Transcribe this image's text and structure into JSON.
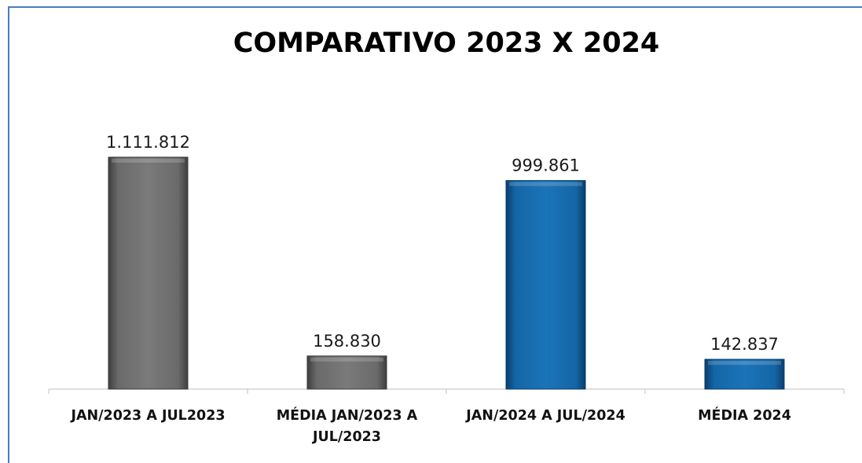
{
  "chart_data": {
    "type": "bar",
    "title": "COMPARATIVO  2023 X 2024",
    "xlabel": "",
    "ylabel": "",
    "grid": false,
    "legend": "none",
    "ylim": [
      0,
      1300000
    ],
    "categories": [
      [
        "JAN/2023 A JUL2023"
      ],
      [
        "MÉDIA JAN/2023 A",
        "JUL/2023"
      ],
      [
        "JAN/2024 A JUL/2024"
      ],
      [
        "MÉDIA 2024"
      ]
    ],
    "values": [
      1111812,
      158830,
      999861,
      142837
    ],
    "data_labels": [
      "1.111.812",
      "158.830",
      "999.861",
      "142.837"
    ],
    "colors": [
      "#6e6e6e",
      "#6e6e6e",
      "#1468a8",
      "#1468a8"
    ]
  }
}
